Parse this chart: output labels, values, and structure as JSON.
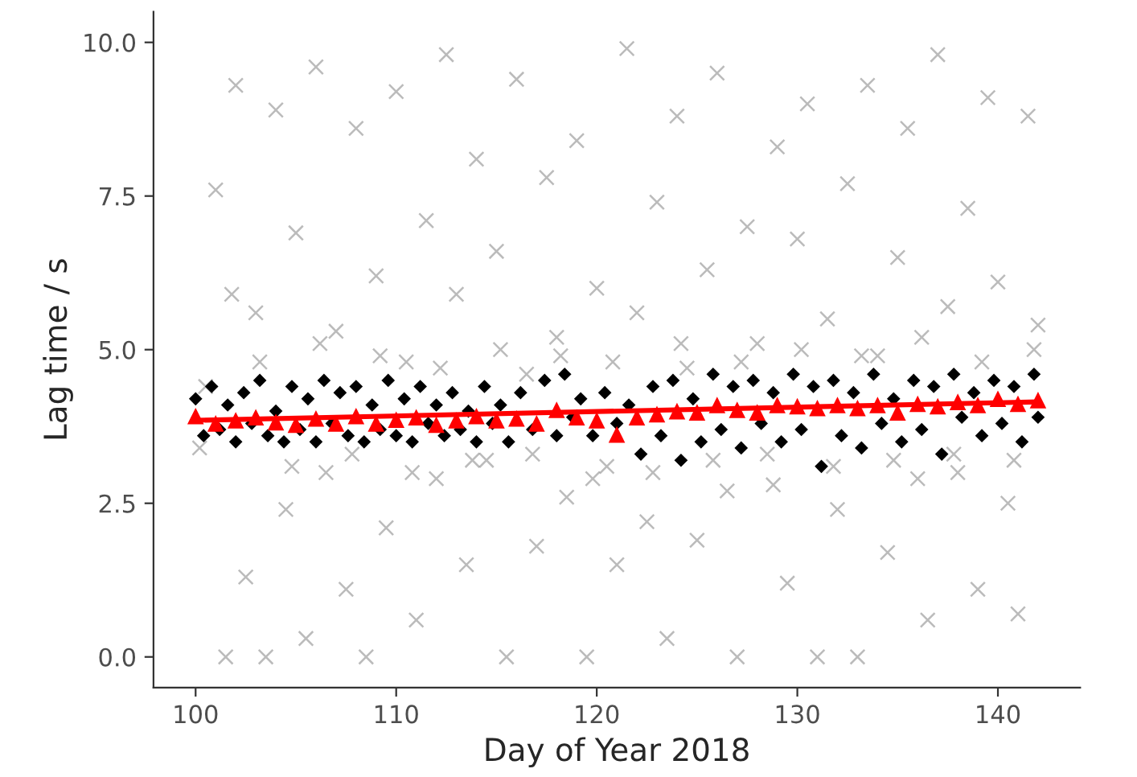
{
  "chart_data": {
    "type": "scatter",
    "xlabel": "Day of Year 2018",
    "ylabel": "Lag time / s",
    "xlim": [
      97.9,
      144.1
    ],
    "xticks": [
      100,
      110,
      120,
      130,
      140
    ],
    "ylim": [
      -0.5,
      10.5
    ],
    "yticks": [
      {
        "value": 0,
        "label": "0.0"
      },
      {
        "value": 2.5,
        "label": "2.5"
      },
      {
        "value": 5,
        "label": "5.0"
      },
      {
        "value": 7.5,
        "label": "7.5"
      },
      {
        "value": 10,
        "label": "10.0"
      }
    ],
    "grid": false,
    "legend": false,
    "series": [
      {
        "marker": "cross",
        "color": "#9e9e9e",
        "x": [
          100.5,
          101,
          101.5,
          102,
          102.5,
          103,
          103.5,
          104,
          104.5,
          105,
          105.5,
          106,
          106.5,
          107,
          107.5,
          108,
          108.5,
          109,
          109.5,
          110,
          110.5,
          111,
          111.5,
          112,
          112.5,
          113,
          113.5,
          114,
          114.5,
          115,
          115.5,
          116,
          116.5,
          117,
          117.5,
          118,
          118.5,
          119,
          119.5,
          120,
          120.5,
          121,
          121.5,
          122,
          122.5,
          123,
          123.5,
          124,
          124.5,
          125,
          125.5,
          126,
          126.5,
          127,
          127.5,
          128,
          128.5,
          129,
          129.5,
          130,
          130.5,
          131,
          131.5,
          132,
          132.5,
          133,
          133.5,
          134,
          134.5,
          135,
          135.5,
          136,
          136.5,
          137,
          137.5,
          138,
          138.5,
          139,
          139.5,
          140,
          140.5,
          141,
          141.5,
          142,
          100.2,
          101.8,
          103.2,
          104.8,
          106.2,
          107.8,
          109.2,
          110.8,
          112.2,
          113.8,
          115.2,
          116.8,
          118.2,
          119.8,
          120.8,
          122.8,
          124.2,
          125.8,
          127.2,
          128.8,
          130.2,
          131.8,
          133.2,
          134.8,
          136.2,
          137.8,
          139.2,
          140.8,
          141.8
        ],
        "values": [
          4.4,
          7.6,
          0.0,
          9.3,
          1.3,
          5.6,
          0.0,
          8.9,
          2.4,
          6.9,
          0.3,
          9.6,
          3.0,
          5.3,
          1.1,
          8.6,
          0.0,
          6.2,
          2.1,
          9.2,
          4.8,
          0.6,
          7.1,
          2.9,
          9.8,
          5.9,
          1.5,
          8.1,
          3.2,
          6.6,
          0.0,
          9.4,
          4.6,
          1.8,
          7.8,
          5.2,
          2.6,
          8.4,
          0.0,
          6.0,
          3.1,
          1.5,
          9.9,
          5.6,
          2.2,
          7.4,
          0.3,
          8.8,
          4.7,
          1.9,
          6.3,
          9.5,
          2.7,
          0.0,
          7.0,
          5.1,
          3.3,
          8.3,
          1.2,
          6.8,
          9.0,
          0.0,
          5.5,
          2.4,
          7.7,
          0.0,
          9.3,
          4.9,
          1.7,
          6.5,
          8.6,
          2.9,
          0.6,
          9.8,
          5.7,
          3.0,
          7.3,
          1.1,
          9.1,
          6.1,
          2.5,
          0.7,
          8.8,
          5.4,
          3.4,
          5.9,
          4.8,
          3.1,
          5.1,
          3.3,
          4.9,
          3.0,
          4.7,
          3.2,
          5.0,
          3.3,
          4.9,
          2.9,
          4.8,
          3.0,
          5.1,
          3.2,
          4.8,
          2.8,
          5.0,
          3.1,
          4.9,
          3.2,
          5.2,
          3.3,
          4.8,
          3.2,
          5.0
        ]
      },
      {
        "marker": "diamond",
        "color": "#000000",
        "x": [
          100,
          100.4,
          100.8,
          101.2,
          101.6,
          102,
          102.4,
          102.8,
          103.2,
          103.6,
          104,
          104.4,
          104.8,
          105.2,
          105.6,
          106,
          106.4,
          106.8,
          107.2,
          107.6,
          108,
          108.4,
          108.8,
          109.2,
          109.6,
          110,
          110.4,
          110.8,
          111.2,
          111.6,
          112,
          112.4,
          112.8,
          113.2,
          113.6,
          114,
          114.4,
          114.8,
          115.2,
          115.6,
          116.2,
          116.8,
          117.4,
          118,
          118.4,
          118.8,
          119.2,
          119.8,
          120.4,
          121,
          121.6,
          122.2,
          122.8,
          123.2,
          123.8,
          124.2,
          124.8,
          125.2,
          125.8,
          126.2,
          126.8,
          127.2,
          127.8,
          128.2,
          128.8,
          129.2,
          129.8,
          130.2,
          130.8,
          131.2,
          131.8,
          132.2,
          132.8,
          133.2,
          133.8,
          134.2,
          134.8,
          135.2,
          135.8,
          136.2,
          136.8,
          137.2,
          137.8,
          138.2,
          138.8,
          139.2,
          139.8,
          140.2,
          140.8,
          141.2,
          141.8,
          142
        ],
        "values": [
          4.2,
          3.6,
          4.4,
          3.7,
          4.1,
          3.5,
          4.3,
          3.8,
          4.5,
          3.6,
          4.0,
          3.5,
          4.4,
          3.7,
          4.2,
          3.5,
          4.5,
          3.8,
          4.3,
          3.6,
          4.4,
          3.5,
          4.1,
          3.7,
          4.5,
          3.6,
          4.2,
          3.5,
          4.4,
          3.8,
          4.1,
          3.6,
          4.3,
          3.7,
          4.0,
          3.5,
          4.4,
          3.8,
          4.1,
          3.5,
          4.3,
          3.7,
          4.5,
          3.6,
          4.6,
          3.9,
          4.2,
          3.6,
          4.3,
          3.8,
          4.1,
          3.3,
          4.4,
          3.6,
          4.5,
          3.2,
          4.2,
          3.5,
          4.6,
          3.7,
          4.4,
          3.4,
          4.5,
          3.8,
          4.3,
          3.5,
          4.6,
          3.7,
          4.4,
          3.1,
          4.5,
          3.6,
          4.3,
          3.4,
          4.6,
          3.8,
          4.2,
          3.5,
          4.5,
          3.7,
          4.4,
          3.3,
          4.6,
          3.9,
          4.3,
          3.6,
          4.5,
          3.8,
          4.4,
          3.5,
          4.6,
          3.9
        ]
      },
      {
        "type": "line",
        "marker": "none",
        "color": "#ff0000",
        "x": [
          100,
          142
        ],
        "values": [
          3.85,
          4.15
        ]
      },
      {
        "marker": "triangle",
        "color": "#ff0000",
        "x": [
          100,
          101,
          102,
          103,
          104,
          105,
          106,
          107,
          108,
          109,
          110,
          111,
          112,
          113,
          114,
          115,
          116,
          117,
          118,
          119,
          120,
          121,
          122,
          123,
          124,
          125,
          126,
          127,
          128,
          129,
          130,
          131,
          132,
          133,
          134,
          135,
          136,
          137,
          138,
          139,
          140,
          141,
          142
        ],
        "values": [
          3.92,
          3.8,
          3.85,
          3.9,
          3.82,
          3.78,
          3.88,
          3.8,
          3.92,
          3.8,
          3.86,
          3.9,
          3.78,
          3.85,
          3.92,
          3.85,
          3.88,
          3.8,
          4.02,
          3.9,
          3.85,
          3.62,
          3.9,
          3.95,
          4.0,
          3.98,
          4.1,
          4.02,
          3.98,
          4.1,
          4.08,
          4.05,
          4.1,
          4.05,
          4.1,
          3.98,
          4.12,
          4.08,
          4.15,
          4.1,
          4.2,
          4.12,
          4.18
        ]
      }
    ]
  }
}
